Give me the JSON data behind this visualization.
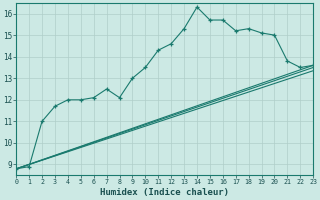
{
  "title": "",
  "xlabel": "Humidex (Indice chaleur)",
  "ylabel": "",
  "background_color": "#cce9e4",
  "grid_color": "#b0cec9",
  "line_color": "#1a7a6e",
  "x_min": 0,
  "x_max": 23,
  "y_min": 8.5,
  "y_max": 16.5,
  "y_ticks": [
    9,
    10,
    11,
    12,
    13,
    14,
    15,
    16
  ],
  "x_ticks": [
    0,
    1,
    2,
    3,
    4,
    5,
    6,
    7,
    8,
    9,
    10,
    11,
    12,
    13,
    14,
    15,
    16,
    17,
    18,
    19,
    20,
    21,
    22,
    23
  ],
  "main_line": {
    "x": [
      0,
      1,
      2,
      3,
      4,
      5,
      6,
      7,
      8,
      9,
      10,
      11,
      12,
      13,
      14,
      15,
      16,
      17,
      18,
      19,
      20,
      21,
      22,
      23
    ],
    "y": [
      8.8,
      8.9,
      11.0,
      11.7,
      12.0,
      12.0,
      12.1,
      12.5,
      12.1,
      13.0,
      13.5,
      14.3,
      14.6,
      15.3,
      16.3,
      15.7,
      15.7,
      15.2,
      15.3,
      15.1,
      15.0,
      13.8,
      13.5,
      13.6
    ]
  },
  "trend_lines": [
    {
      "x": [
        0,
        23
      ],
      "y": [
        8.8,
        13.6
      ]
    },
    {
      "x": [
        0,
        23
      ],
      "y": [
        8.8,
        13.5
      ]
    },
    {
      "x": [
        0,
        23
      ],
      "y": [
        8.8,
        13.35
      ]
    }
  ]
}
